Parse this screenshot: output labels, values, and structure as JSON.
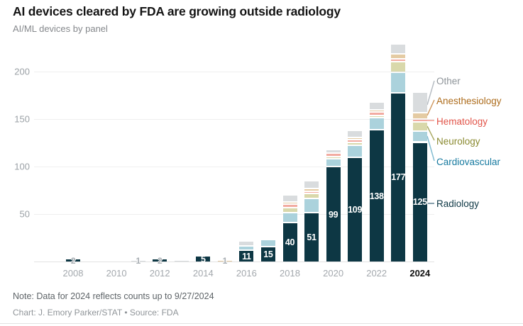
{
  "header": {
    "title": "AI devices cleared by FDA are growing outside radiology",
    "subtitle": "AI/ML devices by panel"
  },
  "chart_data": {
    "type": "bar",
    "stacked": true,
    "title": "AI devices cleared by FDA are growing outside radiology",
    "subtitle": "AI/ML devices by panel",
    "categories": [
      "2008",
      "2009",
      "2010",
      "2011",
      "2012",
      "2013",
      "2014",
      "2015",
      "2016",
      "2017",
      "2018",
      "2019",
      "2020",
      "2021",
      "2022",
      "2023",
      "2024"
    ],
    "series": [
      {
        "name": "Radiology",
        "color": "#0d3744",
        "values": [
          2,
          0,
          0,
          0,
          2,
          0,
          5,
          0,
          11,
          15,
          40,
          51,
          99,
          109,
          138,
          177,
          125
        ]
      },
      {
        "name": "Cardiovascular",
        "color": "#abd2dc",
        "values": [
          0,
          0,
          0,
          0,
          0,
          0,
          0,
          0,
          3,
          6,
          9,
          13,
          7,
          11,
          11,
          20,
          10
        ]
      },
      {
        "name": "Neurology",
        "color": "#d9d8ab",
        "values": [
          0,
          0,
          0,
          0,
          0,
          0,
          0,
          0,
          0,
          0,
          4,
          4,
          1,
          2,
          1,
          10,
          8
        ]
      },
      {
        "name": "Hematology",
        "color": "#f2aba1",
        "values": [
          0,
          0,
          0,
          0,
          0,
          0,
          0,
          0,
          0,
          0,
          2,
          1,
          2,
          1,
          2,
          1,
          2
        ]
      },
      {
        "name": "Anesthesiology",
        "color": "#e4cba3",
        "values": [
          0,
          0,
          0,
          0,
          0,
          0,
          0,
          1,
          0,
          0,
          1,
          1,
          0,
          1,
          1,
          4,
          5
        ]
      },
      {
        "name": "Other",
        "color": "#d9dcde",
        "values": [
          0,
          0,
          0,
          1,
          0,
          1,
          0,
          0,
          4,
          0,
          6,
          7,
          2,
          6,
          7,
          9,
          20
        ]
      }
    ],
    "bar_labels": [
      "2",
      "",
      "",
      "1",
      "2",
      "",
      "5",
      "1",
      "11",
      "15",
      "40",
      "51",
      "99",
      "109",
      "138",
      "177",
      "125"
    ],
    "y_ticks": [
      50,
      100,
      150,
      200
    ],
    "x_tick_labels": [
      "2008",
      "2010",
      "2012",
      "2014",
      "2016",
      "2018",
      "2020",
      "2022",
      "2024"
    ],
    "x_tick_bold": "2024",
    "ylim": [
      0,
      230
    ],
    "grid": "horizontal",
    "legend_position": "right"
  },
  "legend": {
    "items": [
      {
        "label": "Other",
        "color": "#8e9499",
        "line_color": "#b7bdc3"
      },
      {
        "label": "Anesthesiology",
        "color": "#ad6c1c",
        "line_color": "#d09a62"
      },
      {
        "label": "Hematology",
        "color": "#e25449",
        "line_color": "#f09b91"
      },
      {
        "label": "Neurology",
        "color": "#8a8a30",
        "line_color": "#abab66"
      },
      {
        "label": "Cardiovascular",
        "color": "#15799f",
        "line_color": "#84bdd2"
      },
      {
        "label": "Radiology",
        "color": "#0d3744",
        "line_color": "#5f8191"
      }
    ]
  },
  "notes": {
    "note": "Note: Data for 2024 reflects counts up to 9/27/2024",
    "credit": "Chart: J. Emory Parker/STAT • Source: FDA"
  }
}
